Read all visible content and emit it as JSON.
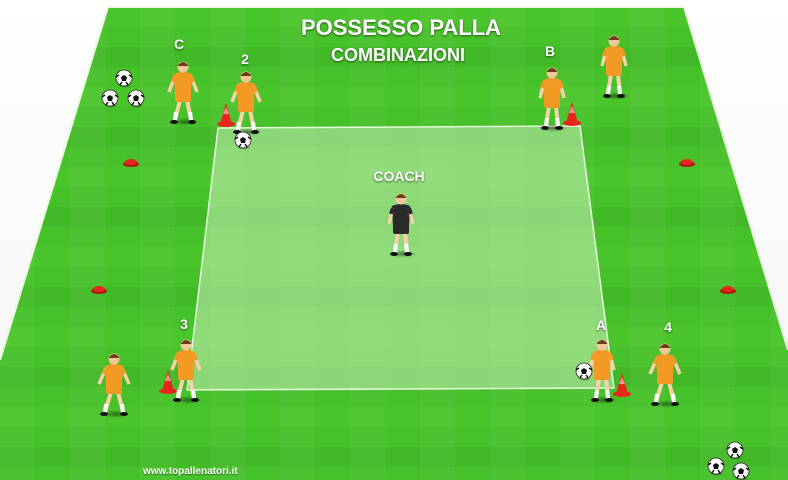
{
  "diagram": {
    "title": "POSSESSO PALLA",
    "subtitle": "COMBINAZIONI",
    "coach_label": "COACH",
    "player_labels": {
      "c": "C",
      "two": "2",
      "b": "B",
      "three": "3",
      "a": "A",
      "four": "4"
    },
    "credit": "www.topallenatori.it"
  },
  "colors": {
    "pitch_light": "#4fc82e",
    "pitch_dark": "#3cb322",
    "grid_area": "#b5e89f",
    "kit": "#f39a24",
    "cone": "#e8271c",
    "coach_kit": "#2a2a2a"
  }
}
